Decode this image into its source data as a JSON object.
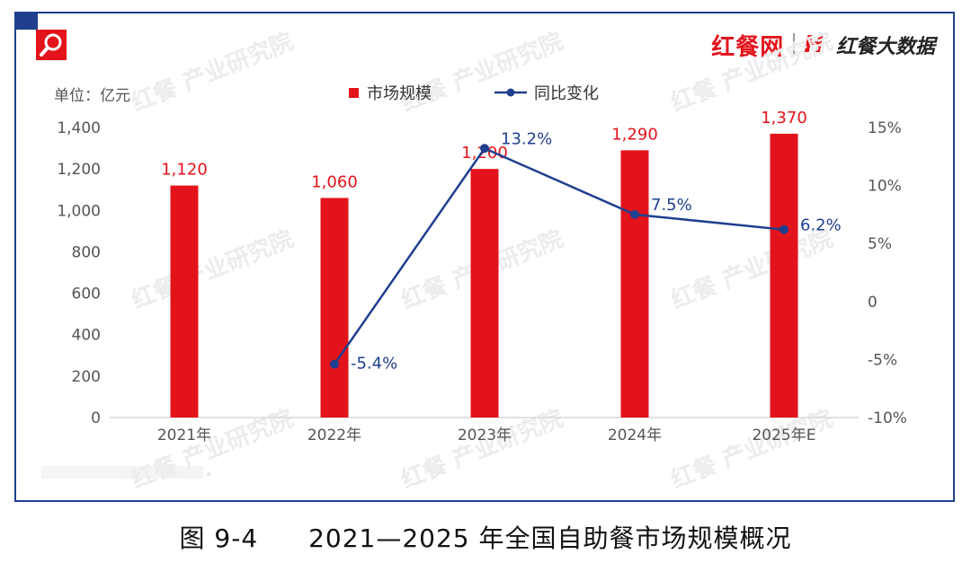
{
  "header": {
    "unit_label": "单位：亿元",
    "brand_left": "红餐网",
    "brand_right": "红餐大数据",
    "brand_mark": "H"
  },
  "legend": {
    "bar_label": "市场规模",
    "line_label": "同比变化"
  },
  "colors": {
    "bar": "#e3131b",
    "line": "#1f3f8f",
    "frame": "#1f3f8f",
    "axis_text": "#555555"
  },
  "watermark": "红餐 产业研究院",
  "note": "。",
  "caption": {
    "figure_no": "图 9-4",
    "title": "2021—2025 年全国自助餐市场规模概况"
  },
  "chart_data": {
    "type": "bar",
    "title": "2021—2025 年全国自助餐市场规模概况",
    "categories": [
      "2021年",
      "2022年",
      "2023年",
      "2024年",
      "2025年E"
    ],
    "series": [
      {
        "name": "市场规模",
        "type": "bar",
        "axis": "left",
        "values": [
          1120,
          1060,
          1200,
          1290,
          1370
        ],
        "labels": [
          "1,120",
          "1,060",
          "1,200",
          "1,290",
          "1,370"
        ]
      },
      {
        "name": "同比变化",
        "type": "line",
        "axis": "right",
        "values": [
          null,
          -5.4,
          13.2,
          7.5,
          6.2
        ],
        "labels": [
          "",
          "-5.4%",
          "13.2%",
          "7.5%",
          "6.2%"
        ]
      }
    ],
    "ylabel": "单位：亿元",
    "ylim": [
      0,
      1400
    ],
    "yticks": [
      0,
      200,
      400,
      600,
      800,
      1000,
      1200,
      1400
    ],
    "ytick_labels": [
      "0",
      "200",
      "400",
      "600",
      "800",
      "1,000",
      "1,200",
      "1,400"
    ],
    "y2lim": [
      -10,
      15
    ],
    "y2ticks": [
      -10,
      -5,
      0,
      5,
      10,
      15
    ],
    "y2tick_labels": [
      "-10%",
      "-5%",
      "0",
      "5%",
      "10%",
      "15%"
    ],
    "grid": false,
    "legend_position": "top-center"
  }
}
